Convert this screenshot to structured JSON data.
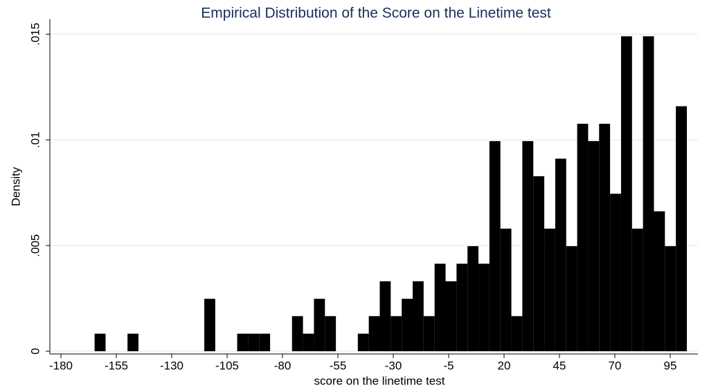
{
  "chart_data": {
    "type": "histogram",
    "title": "Empirical Distribution of the Score on the Linetime test",
    "x_label": "score on the linetime test",
    "y_label": "Density",
    "bins": [
      -164.8,
      -159.85,
      -154.9,
      -149.95,
      -145,
      -140.05,
      -135.1,
      -130.15,
      -125.2,
      -120.25,
      -115.3,
      -110.35,
      -105.4,
      -100.45,
      -95.5,
      -90.55,
      -85.6,
      -80.65,
      -75.7,
      -70.75,
      -65.8,
      -60.85,
      -55.9,
      -50.95,
      -46,
      -41.05,
      -36.1,
      -31.15,
      -26.2,
      -21.25,
      -16.3,
      -11.35,
      -6.4,
      -1.45,
      3.5,
      8.45,
      13.4,
      18.35,
      23.3,
      28.25,
      33.2,
      38.15,
      43.1,
      48.05,
      53,
      57.95,
      62.9,
      67.85,
      72.8,
      77.75,
      82.7,
      87.65,
      92.6,
      97.55,
      102.5
    ],
    "values": [
      0.00083,
      0,
      0,
      0.00083,
      0,
      0,
      0,
      0,
      0,
      0,
      0.00248,
      0,
      0,
      0.00083,
      0.00083,
      0.00083,
      0,
      0,
      0.00166,
      0.00083,
      0.00248,
      0.00166,
      0,
      0,
      0.00083,
      0.00166,
      0.00331,
      0.00166,
      0.00248,
      0.00331,
      0.00166,
      0.00414,
      0.00331,
      0.00414,
      0.00497,
      0.00414,
      0.00994,
      0.0058,
      0.00166,
      0.00994,
      0.00828,
      0.0058,
      0.00911,
      0.00497,
      0.01076,
      0.00994,
      0.01076,
      0.00745,
      0.0149,
      0.0058,
      0.0149,
      0.00662,
      0.00497,
      0.01159
    ],
    "color": "#000000",
    "xlim": [
      -185,
      107.5
    ],
    "xticks": [
      -180,
      -155,
      -130,
      -105,
      -80,
      -55,
      -30,
      -5,
      20,
      45,
      70,
      95
    ],
    "ylim": [
      -0.00013,
      0.0157
    ],
    "yticks": [
      0,
      {
        "value": 0.005,
        "label": ".005"
      },
      {
        "value": 0.01,
        "label": ".01"
      },
      {
        "value": 0.015,
        "label": ".015"
      }
    ],
    "grid": true
  }
}
